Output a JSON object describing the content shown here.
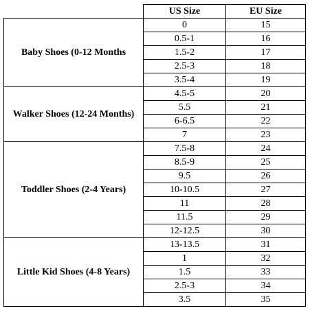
{
  "headers": {
    "category": "",
    "us": "US Size",
    "eu": "EU Size"
  },
  "groups": [
    {
      "label": "Baby Shoes (0-12 Months",
      "rows": [
        {
          "us": "0",
          "eu": "15"
        },
        {
          "us": "0.5-1",
          "eu": "16"
        },
        {
          "us": "1.5-2",
          "eu": "17"
        },
        {
          "us": "2.5-3",
          "eu": "18"
        },
        {
          "us": "3.5-4",
          "eu": "19"
        }
      ]
    },
    {
      "label": "Walker Shoes (12-24 Months)",
      "rows": [
        {
          "us": "4.5-5",
          "eu": "20"
        },
        {
          "us": "5.5",
          "eu": "21"
        },
        {
          "us": "6-6.5",
          "eu": "22"
        },
        {
          "us": "7",
          "eu": "23"
        }
      ]
    },
    {
      "label": "Toddler Shoes (2-4 Years)",
      "rows": [
        {
          "us": "7.5-8",
          "eu": "24"
        },
        {
          "us": "8.5-9",
          "eu": "25"
        },
        {
          "us": "9.5",
          "eu": "26"
        },
        {
          "us": "10-10.5",
          "eu": "27"
        },
        {
          "us": "11",
          "eu": "28"
        },
        {
          "us": "11.5",
          "eu": "29"
        },
        {
          "us": "12-12.5",
          "eu": "30"
        }
      ]
    },
    {
      "label": "Little Kid Shoes (4-8 Years)",
      "rows": [
        {
          "us": "13-13.5",
          "eu": "31"
        },
        {
          "us": "1",
          "eu": "32"
        },
        {
          "us": "1.5",
          "eu": "33"
        },
        {
          "us": "2.5-3",
          "eu": "34"
        },
        {
          "us": "3.5",
          "eu": "35"
        }
      ]
    }
  ]
}
